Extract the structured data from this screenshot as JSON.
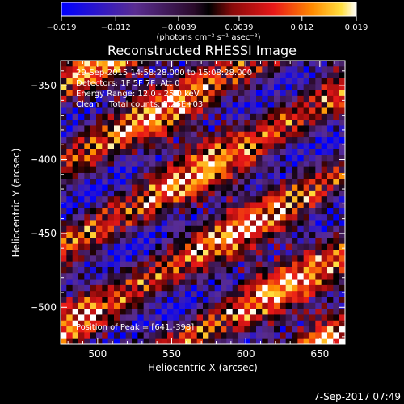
{
  "chart_data": {
    "type": "heatmap",
    "title": "Reconstructed RHESSI Image",
    "xlabel": "Heliocentric X (arcsec)",
    "ylabel": "Heliocentric Y (arcsec)",
    "xlim": [
      475,
      667
    ],
    "ylim": [
      -525,
      -333
    ],
    "x_ticks": [
      500,
      550,
      600,
      650
    ],
    "y_ticks": [
      -500,
      -450,
      -400,
      -350
    ],
    "colorbar": {
      "ticks": [
        "-0.019",
        "-0.012",
        "-0.0039",
        "0.0039",
        "0.012",
        "0.019"
      ],
      "label": "(photons cm⁻² s⁻¹ asec⁻²)",
      "range": [
        -0.019,
        0.019
      ]
    },
    "annotations": [
      "29-Sep-2015 14:58:28.000 to 15:08:28.000",
      "Detectors: 1F 5F 7F, Att 0",
      "Energy Range: 12.0 - 25.0 keV",
      "Clean    Total counts: 5.26E+03"
    ],
    "peak_text": "Position of Peak = [641,-398]",
    "peak": [
      641,
      -398
    ],
    "grid": false,
    "pattern": {
      "cells_x": 48,
      "cells_y": 48,
      "stripe_direction": "diagonal, descending left to right",
      "note": "checkerboard-like fringe pattern of positive and negative flux"
    }
  },
  "footer": {
    "timestamp": "7-Sep-2017 07:49"
  },
  "colors": {
    "background": "#000000",
    "foreground": "#ffffff"
  }
}
